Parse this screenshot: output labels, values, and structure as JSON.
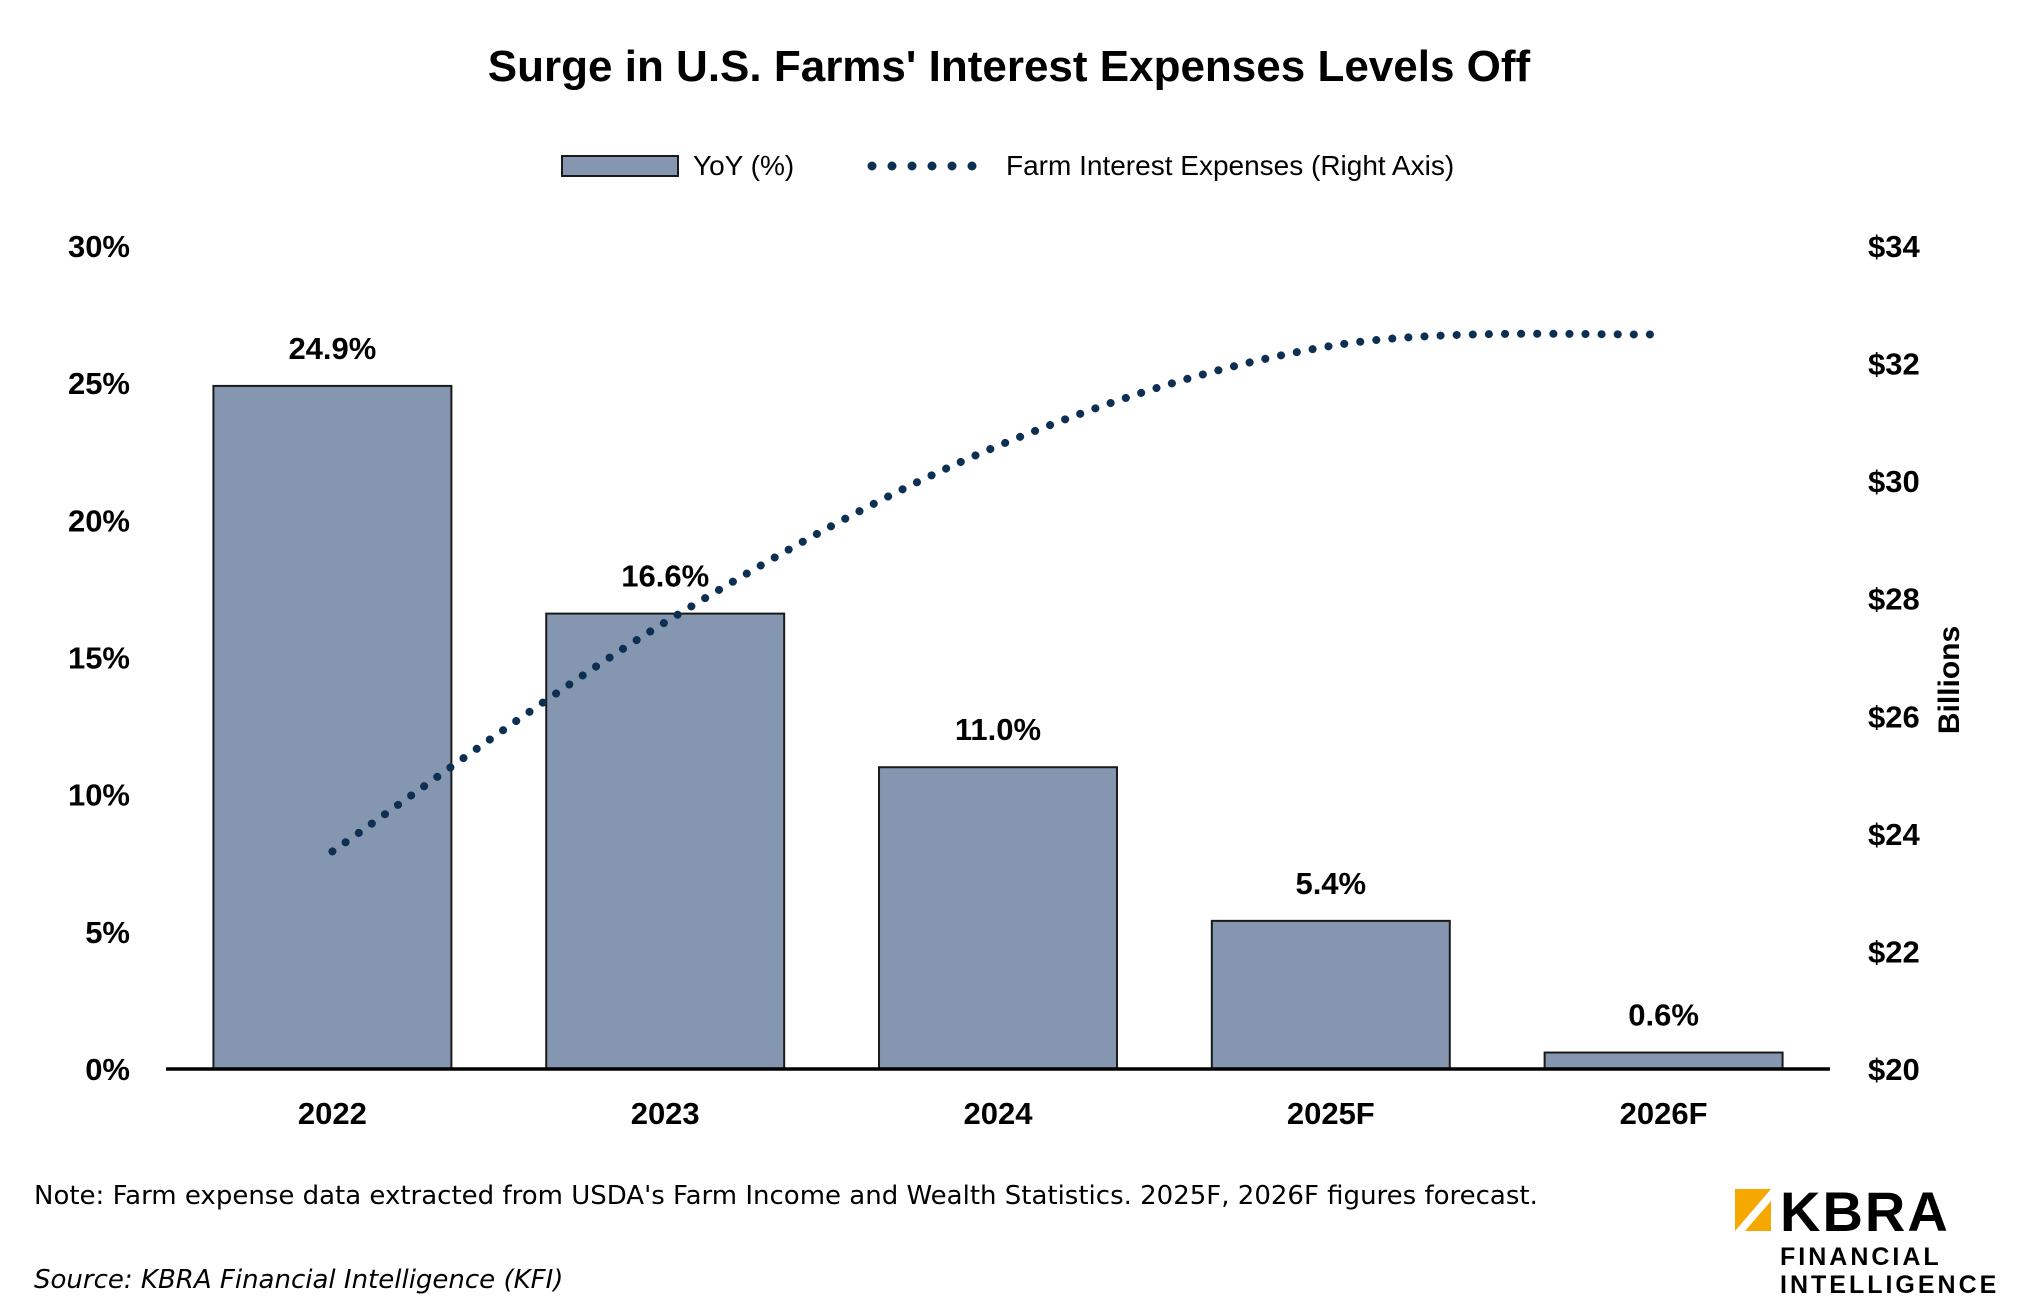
{
  "chart_data": {
    "type": "bar",
    "title": "Surge in U.S. Farms' Interest Expenses Levels Off",
    "categories": [
      "2022",
      "2023",
      "2024",
      "2025F",
      "2026F"
    ],
    "series": [
      {
        "name": "YoY (%)",
        "type": "bar",
        "axis": "left",
        "values": [
          24.9,
          16.6,
          11.0,
          5.4,
          0.6
        ],
        "data_labels": [
          "24.9%",
          "16.6%",
          "11.0%",
          "5.4%",
          "0.6%"
        ],
        "color": "#8597b0"
      },
      {
        "name": "Farm Interest Expenses (Right Axis)",
        "type": "line",
        "style": "dotted",
        "axis": "right",
        "values": [
          23.7,
          27.6,
          30.6,
          32.3,
          32.5
        ],
        "color": "#0d2f52"
      }
    ],
    "y_left": {
      "ylim": [
        0,
        30
      ],
      "ticks": [
        0,
        5,
        10,
        15,
        20,
        25,
        30
      ],
      "tick_labels": [
        "0%",
        "5%",
        "10%",
        "15%",
        "20%",
        "25%",
        "30%"
      ]
    },
    "y_right": {
      "label": "Billions",
      "ylim": [
        20,
        34
      ],
      "ticks": [
        20,
        22,
        24,
        26,
        28,
        30,
        32,
        34
      ],
      "tick_labels": [
        "$20",
        "$22",
        "$24",
        "$26",
        "$28",
        "$30",
        "$32",
        "$34"
      ]
    },
    "grid": false,
    "legend_position": "top"
  },
  "note": "Note: Farm expense data extracted from USDA's Farm Income and Wealth Statistics. 2025F, 2026F figures forecast.",
  "source": "Source: KBRA Financial Intelligence (KFI)",
  "logo": {
    "word": "KBRA",
    "line1": "FINANCIAL",
    "line2": "INTELLIGENCE",
    "accent_color": "#f5a800"
  }
}
